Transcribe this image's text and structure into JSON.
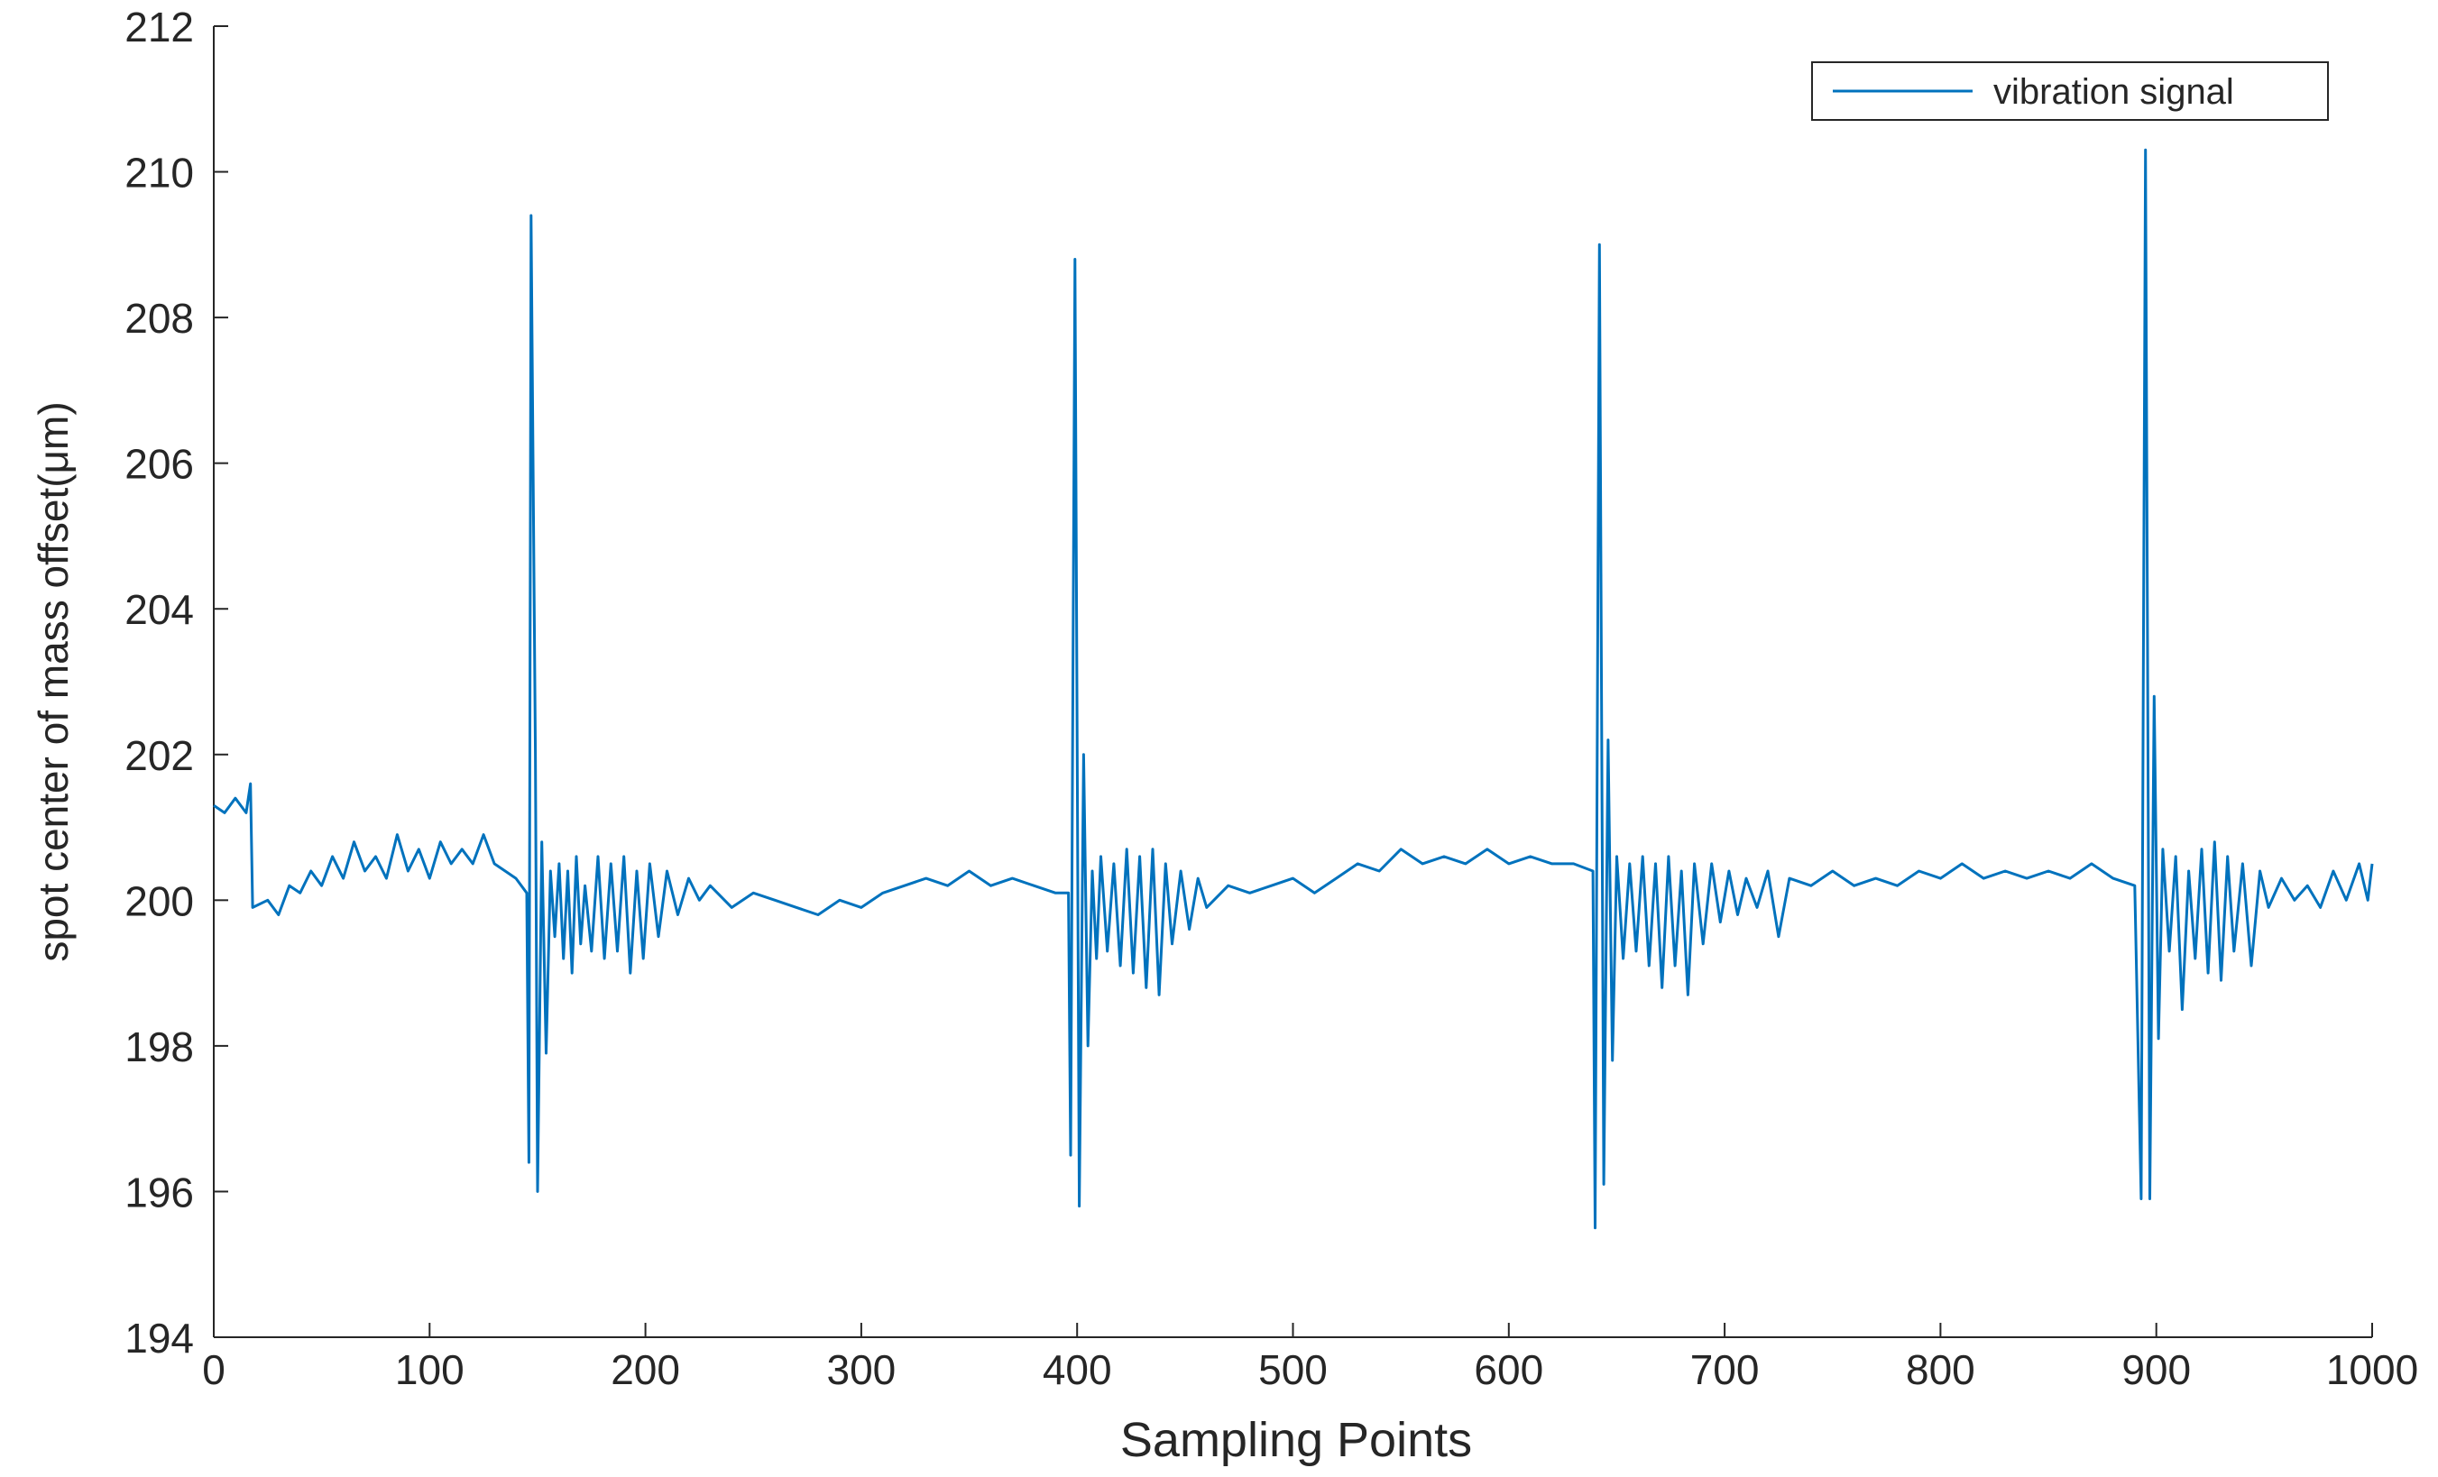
{
  "chart_data": {
    "type": "line",
    "xlabel": "Sampling Points",
    "ylabel": "spot center of mass offset(μm)",
    "xlim": [
      0,
      1000
    ],
    "ylim": [
      194,
      212
    ],
    "xticks": [
      0,
      100,
      200,
      300,
      400,
      500,
      600,
      700,
      800,
      900,
      1000
    ],
    "yticks": [
      194,
      196,
      198,
      200,
      202,
      204,
      206,
      208,
      210,
      212
    ],
    "grid": false,
    "legend": "upper right",
    "x": [
      0,
      5,
      10,
      15,
      17,
      18,
      25,
      30,
      35,
      40,
      45,
      50,
      55,
      60,
      65,
      70,
      75,
      80,
      85,
      90,
      95,
      100,
      105,
      110,
      115,
      120,
      125,
      130,
      135,
      140,
      145,
      146,
      147,
      149,
      150,
      152,
      154,
      156,
      158,
      160,
      162,
      164,
      166,
      168,
      170,
      172,
      175,
      178,
      181,
      184,
      187,
      190,
      193,
      196,
      199,
      202,
      206,
      210,
      215,
      220,
      225,
      230,
      240,
      250,
      260,
      270,
      280,
      290,
      300,
      310,
      320,
      330,
      340,
      350,
      360,
      370,
      380,
      390,
      396,
      397,
      399,
      401,
      403,
      405,
      407,
      409,
      411,
      414,
      417,
      420,
      423,
      426,
      429,
      432,
      435,
      438,
      441,
      444,
      448,
      452,
      456,
      460,
      470,
      480,
      490,
      500,
      510,
      520,
      530,
      540,
      550,
      560,
      570,
      580,
      590,
      600,
      610,
      620,
      630,
      639,
      640,
      642,
      644,
      646,
      648,
      650,
      653,
      656,
      659,
      662,
      665,
      668,
      671,
      674,
      677,
      680,
      683,
      686,
      690,
      694,
      698,
      702,
      706,
      710,
      715,
      720,
      725,
      730,
      740,
      750,
      760,
      770,
      780,
      790,
      800,
      810,
      820,
      830,
      840,
      850,
      860,
      870,
      880,
      890,
      893,
      895,
      897,
      899,
      901,
      903,
      906,
      909,
      912,
      915,
      918,
      921,
      924,
      927,
      930,
      933,
      936,
      940,
      944,
      948,
      952,
      958,
      964,
      970,
      976,
      982,
      988,
      994,
      998,
      1000
    ],
    "series": [
      {
        "name": "vibration signal",
        "color": "#0072bd",
        "values": [
          201.3,
          201.2,
          201.4,
          201.2,
          201.6,
          199.9,
          200.0,
          199.8,
          200.2,
          200.1,
          200.4,
          200.2,
          200.6,
          200.3,
          200.8,
          200.4,
          200.6,
          200.3,
          200.9,
          200.4,
          200.7,
          200.3,
          200.8,
          200.5,
          200.7,
          200.5,
          200.9,
          200.5,
          200.4,
          200.3,
          200.1,
          196.4,
          209.4,
          202.0,
          196.0,
          200.8,
          197.9,
          200.4,
          199.5,
          200.5,
          199.2,
          200.4,
          199.0,
          200.6,
          199.4,
          200.2,
          199.3,
          200.6,
          199.2,
          200.5,
          199.3,
          200.6,
          199.0,
          200.4,
          199.2,
          200.5,
          199.5,
          200.4,
          199.8,
          200.3,
          200.0,
          200.2,
          199.9,
          200.1,
          200.0,
          199.9,
          199.8,
          200.0,
          199.9,
          200.1,
          200.2,
          200.3,
          200.2,
          200.4,
          200.2,
          200.3,
          200.2,
          200.1,
          200.1,
          196.5,
          208.8,
          195.8,
          202.0,
          198.0,
          200.4,
          199.2,
          200.6,
          199.3,
          200.5,
          199.1,
          200.7,
          199.0,
          200.6,
          198.8,
          200.7,
          198.7,
          200.5,
          199.4,
          200.4,
          199.6,
          200.3,
          199.9,
          200.2,
          200.1,
          200.2,
          200.3,
          200.1,
          200.3,
          200.5,
          200.4,
          200.7,
          200.5,
          200.6,
          200.5,
          200.7,
          200.5,
          200.6,
          200.5,
          200.5,
          200.4,
          195.5,
          209.0,
          196.1,
          202.2,
          197.8,
          200.6,
          199.2,
          200.5,
          199.3,
          200.6,
          199.1,
          200.5,
          198.8,
          200.6,
          199.1,
          200.4,
          198.7,
          200.5,
          199.4,
          200.5,
          199.7,
          200.4,
          199.8,
          200.3,
          199.9,
          200.4,
          199.5,
          200.3,
          200.2,
          200.4,
          200.2,
          200.3,
          200.2,
          200.4,
          200.3,
          200.5,
          200.3,
          200.4,
          200.3,
          200.4,
          200.3,
          200.5,
          200.3,
          200.2,
          195.9,
          210.3,
          195.9,
          202.8,
          198.1,
          200.7,
          199.3,
          200.6,
          198.5,
          200.4,
          199.2,
          200.7,
          199.0,
          200.8,
          198.9,
          200.6,
          199.3,
          200.5,
          199.1,
          200.4,
          199.9,
          200.3,
          200.0,
          200.2,
          199.9,
          200.4,
          200.0,
          200.5,
          200.0,
          200.5
        ]
      }
    ]
  }
}
